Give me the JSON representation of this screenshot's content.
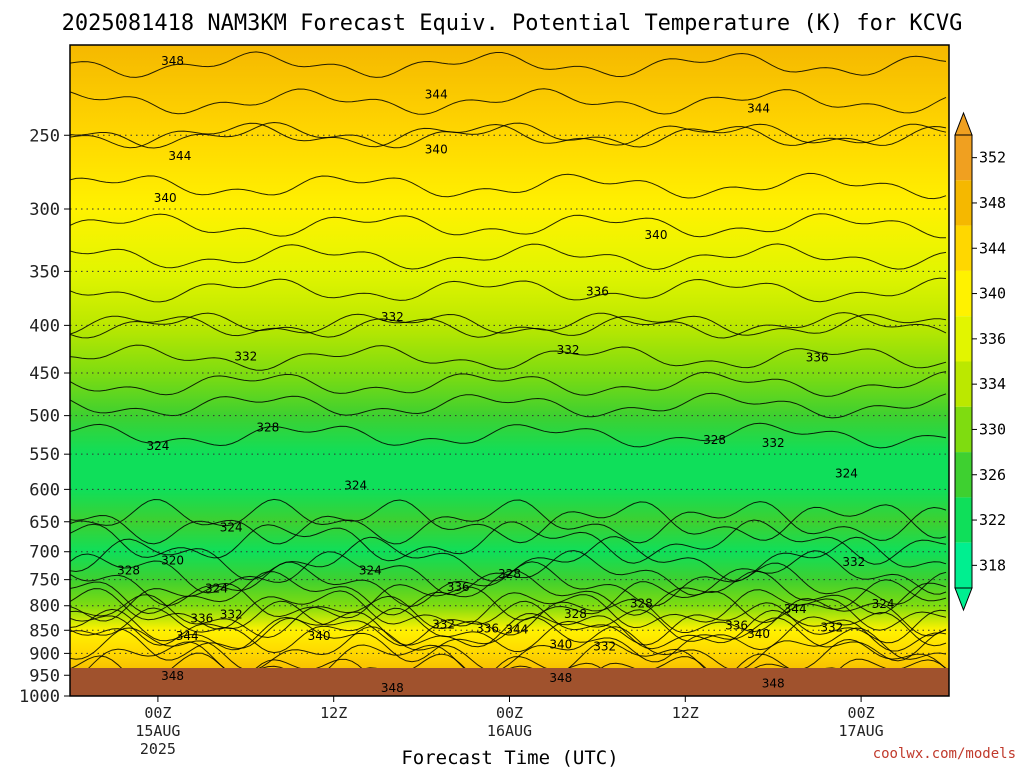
{
  "chart_data": {
    "type": "heatmap",
    "title": "2025081418 NAM3KM Forecast Equiv. Potential Temperature (K) for KCVG",
    "xlabel": "Forecast Time (UTC)",
    "ylabel": "",
    "y_scale": "log-pressure",
    "y_inverted": true,
    "ylim": [
      1000,
      200
    ],
    "y_ticks": [
      250,
      300,
      350,
      400,
      450,
      500,
      550,
      600,
      650,
      700,
      750,
      800,
      850,
      900,
      950,
      1000
    ],
    "x_range_hours": [
      -6,
      54
    ],
    "x_ticks": [
      {
        "hour": 0,
        "labels": [
          "00Z",
          "15AUG",
          "2025"
        ]
      },
      {
        "hour": 12,
        "labels": [
          "12Z"
        ]
      },
      {
        "hour": 24,
        "labels": [
          "00Z",
          "16AUG"
        ]
      },
      {
        "hour": 36,
        "labels": [
          "12Z"
        ]
      },
      {
        "hour": 48,
        "labels": [
          "00Z",
          "17AUG"
        ]
      }
    ],
    "grid": "dotted horizontal at pressure ticks",
    "colorbar": {
      "position": "right",
      "levels": [
        352,
        348,
        344,
        340,
        336,
        334,
        330,
        326,
        322,
        318
      ],
      "colors": [
        "#f0a020",
        "#f5b800",
        "#ffd700",
        "#fff200",
        "#e2f500",
        "#bbe800",
        "#7fdc10",
        "#3ed030",
        "#0fdf5a",
        "#00ef90"
      ]
    },
    "theta_e_profile": [
      {
        "p": 200,
        "k": 349
      },
      {
        "p": 250,
        "k": 344
      },
      {
        "p": 300,
        "k": 341
      },
      {
        "p": 350,
        "k": 337
      },
      {
        "p": 400,
        "k": 334
      },
      {
        "p": 450,
        "k": 331
      },
      {
        "p": 500,
        "k": 327
      },
      {
        "p": 550,
        "k": 325
      },
      {
        "p": 600,
        "k": 325
      },
      {
        "p": 650,
        "k": 326
      },
      {
        "p": 700,
        "k": 323
      },
      {
        "p": 750,
        "k": 327
      },
      {
        "p": 800,
        "k": 333
      },
      {
        "p": 850,
        "k": 340
      },
      {
        "p": 900,
        "k": 345
      },
      {
        "p": 950,
        "k": 348
      },
      {
        "p": 1000,
        "k": 350
      }
    ],
    "contour_labels": [
      {
        "text": "348",
        "hour": 1,
        "p": 208
      },
      {
        "text": "344",
        "hour": 19,
        "p": 226
      },
      {
        "text": "344",
        "hour": 41,
        "p": 234
      },
      {
        "text": "344",
        "hour": 1.5,
        "p": 263
      },
      {
        "text": "340",
        "hour": 19,
        "p": 259
      },
      {
        "text": "340",
        "hour": 0.5,
        "p": 292
      },
      {
        "text": "340",
        "hour": 34,
        "p": 320
      },
      {
        "text": "336",
        "hour": 30,
        "p": 368
      },
      {
        "text": "332",
        "hour": 16,
        "p": 392
      },
      {
        "text": "332",
        "hour": 28,
        "p": 425
      },
      {
        "text": "332",
        "hour": 6,
        "p": 432
      },
      {
        "text": "336",
        "hour": 45,
        "p": 433
      },
      {
        "text": "328",
        "hour": 7.5,
        "p": 515
      },
      {
        "text": "324",
        "hour": 0,
        "p": 539
      },
      {
        "text": "328",
        "hour": 38,
        "p": 531
      },
      {
        "text": "332",
        "hour": 42,
        "p": 535
      },
      {
        "text": "324",
        "hour": 47,
        "p": 577
      },
      {
        "text": "324",
        "hour": 13.5,
        "p": 594
      },
      {
        "text": "324",
        "hour": 5,
        "p": 659
      },
      {
        "text": "320",
        "hour": 1,
        "p": 715
      },
      {
        "text": "328",
        "hour": -2,
        "p": 733
      },
      {
        "text": "324",
        "hour": 14.5,
        "p": 733
      },
      {
        "text": "328",
        "hour": 24,
        "p": 740
      },
      {
        "text": "332",
        "hour": 47.5,
        "p": 718
      },
      {
        "text": "324",
        "hour": 4,
        "p": 767
      },
      {
        "text": "336",
        "hour": 20.5,
        "p": 764
      },
      {
        "text": "328",
        "hour": 33,
        "p": 796
      },
      {
        "text": "344",
        "hour": 43.5,
        "p": 806
      },
      {
        "text": "324",
        "hour": 49.5,
        "p": 797
      },
      {
        "text": "336",
        "hour": 3,
        "p": 826
      },
      {
        "text": "332",
        "hour": 5,
        "p": 818
      },
      {
        "text": "328",
        "hour": 28.5,
        "p": 817
      },
      {
        "text": "332",
        "hour": 19.5,
        "p": 838
      },
      {
        "text": "336",
        "hour": 22.5,
        "p": 846
      },
      {
        "text": "344",
        "hour": 24.5,
        "p": 848
      },
      {
        "text": "336",
        "hour": 39.5,
        "p": 840
      },
      {
        "text": "332",
        "hour": 46,
        "p": 844
      },
      {
        "text": "344",
        "hour": 2,
        "p": 862
      },
      {
        "text": "340",
        "hour": 11,
        "p": 862
      },
      {
        "text": "340",
        "hour": 41,
        "p": 858
      },
      {
        "text": "340",
        "hour": 27.5,
        "p": 880
      },
      {
        "text": "332",
        "hour": 30.5,
        "p": 885
      },
      {
        "text": "348",
        "hour": 1,
        "p": 952
      },
      {
        "text": "348",
        "hour": 16,
        "p": 980
      },
      {
        "text": "348",
        "hour": 27.5,
        "p": 957
      },
      {
        "text": "348",
        "hour": 42,
        "p": 970
      }
    ],
    "ground": {
      "color": "#a0522d"
    }
  },
  "credit": "coolwx.com/models"
}
